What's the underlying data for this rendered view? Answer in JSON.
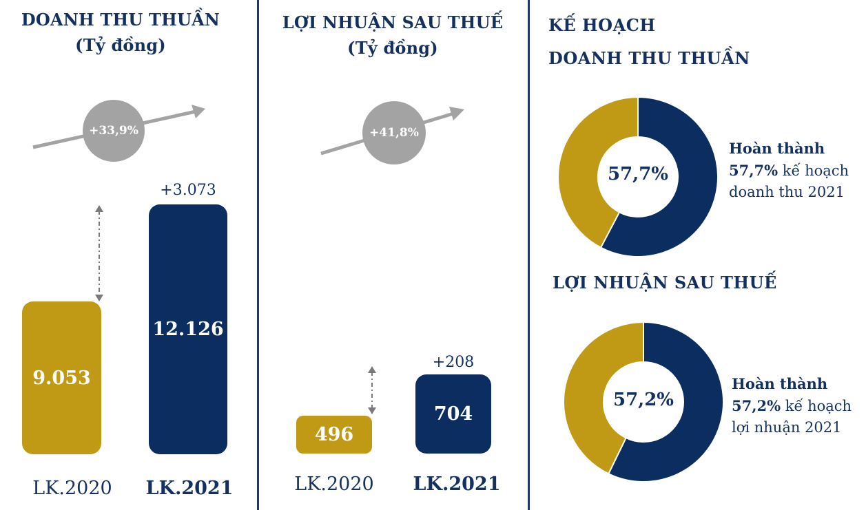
{
  "colors": {
    "gold": "#c09a14",
    "navy": "#0c2d5f",
    "grey": "#a3a3a3",
    "text": "#14305f"
  },
  "chart_data": [
    {
      "type": "bar",
      "title": "DOANH THU THUẦN",
      "subtitle": "(Tỷ đồng)",
      "categories": [
        "LK.2020",
        "LK.2021"
      ],
      "values": [
        9053,
        12126
      ],
      "value_labels": [
        "9.053",
        "12.126"
      ],
      "difference_label": "+3.073",
      "growth_label": "+33,9%"
    },
    {
      "type": "bar",
      "title": "LỢI NHUẬN SAU THUẾ",
      "subtitle": "(Tỷ đồng)",
      "categories": [
        "LK.2020",
        "LK.2021"
      ],
      "values": [
        496,
        704
      ],
      "value_labels": [
        "496",
        "704"
      ],
      "difference_label": "+208",
      "growth_label": "+41,8%"
    },
    {
      "type": "pie",
      "title": "DOANH THU THUẦN",
      "values": [
        57.7,
        42.3
      ],
      "center_label": "57,7%",
      "note": {
        "lead": "Hoàn thành",
        "pct": "57,7%",
        "text1": " kế hoạch",
        "text2": "doanh thu 2021"
      }
    },
    {
      "type": "pie",
      "title": "LỢI NHUẬN SAU THUẾ",
      "values": [
        57.2,
        42.8
      ],
      "center_label": "57,2%",
      "note": {
        "lead": "Hoàn thành",
        "pct": "57,2%",
        "text1": " kế hoạch",
        "text2": "lợi nhuận 2021"
      }
    }
  ],
  "right_panel": {
    "heading_line1": "KẾ HOẠCH"
  }
}
